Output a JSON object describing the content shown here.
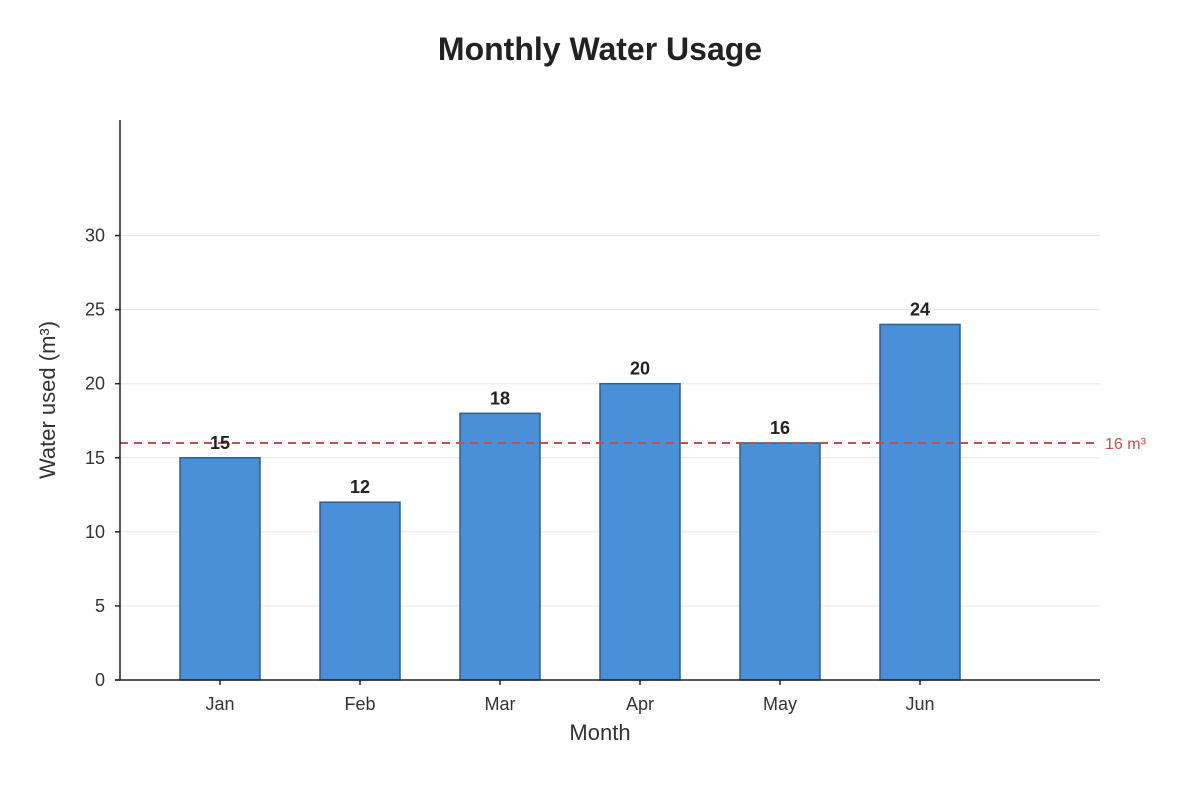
{
  "chart_data": {
    "type": "bar",
    "title": "Monthly Water Usage",
    "xlabel": "Month",
    "ylabel": "Water used (m³)",
    "categories": [
      "Jan",
      "Feb",
      "Mar",
      "Apr",
      "May",
      "Jun"
    ],
    "values": [
      15,
      12,
      18,
      20,
      16,
      24
    ],
    "ylim": [
      0,
      37.8
    ],
    "yticks": [
      0,
      5,
      10,
      15,
      20,
      25,
      30
    ],
    "ytick_labels": [
      "0",
      "5",
      "10",
      "15",
      "20",
      "25",
      "30"
    ],
    "data_labels": [
      "15",
      "12",
      "18",
      "20",
      "16",
      "24"
    ],
    "grid": true,
    "bar_color": "#4a90d9",
    "bar_edge_color": "#2e5f8a",
    "reference_line": {
      "value": 16,
      "label": "16 m³",
      "color": "#c0504d",
      "style": "dashed"
    }
  }
}
